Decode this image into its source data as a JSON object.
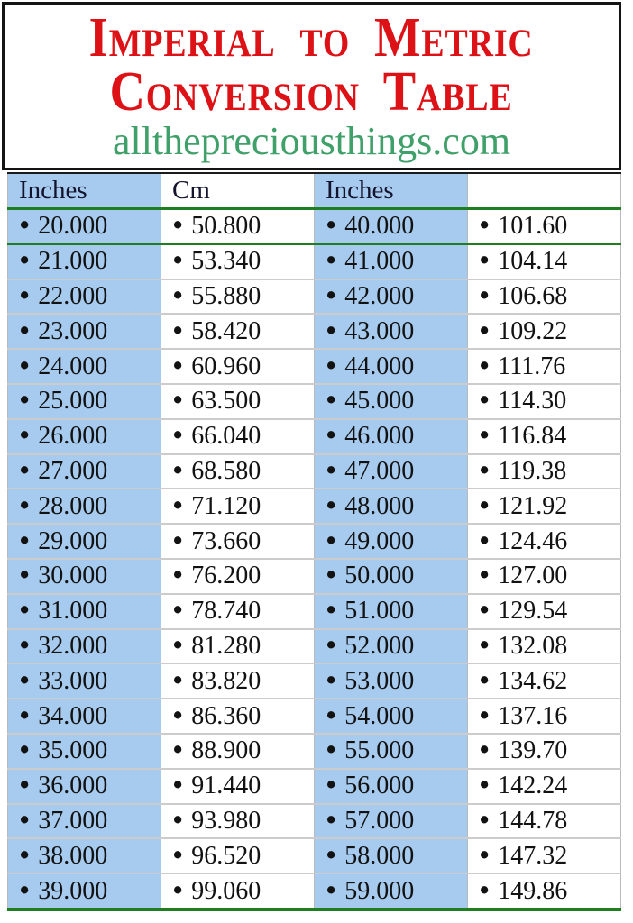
{
  "header_box": {
    "title_line1": "Imperial to Metric",
    "title_line2": "Conversion Table",
    "website": "allthepreciousthings.com"
  },
  "table": {
    "bullet": "•",
    "columns": [
      "Inches",
      "Cm",
      "Inches",
      ""
    ],
    "rows": [
      [
        "20.000",
        "50.800",
        "40.000",
        "101.60"
      ],
      [
        "21.000",
        "53.340",
        "41.000",
        "104.14"
      ],
      [
        "22.000",
        "55.880",
        "42.000",
        "106.68"
      ],
      [
        "23.000",
        "58.420",
        "43.000",
        "109.22"
      ],
      [
        "24.000",
        "60.960",
        "44.000",
        "111.76"
      ],
      [
        "25.000",
        "63.500",
        "45.000",
        "114.30"
      ],
      [
        "26.000",
        "66.040",
        "46.000",
        "116.84"
      ],
      [
        "27.000",
        "68.580",
        "47.000",
        "119.38"
      ],
      [
        "28.000",
        "71.120",
        "48.000",
        "121.92"
      ],
      [
        "29.000",
        "73.660",
        "49.000",
        "124.46"
      ],
      [
        "30.000",
        "76.200",
        "50.000",
        "127.00"
      ],
      [
        "31.000",
        "78.740",
        "51.000",
        "129.54"
      ],
      [
        "32.000",
        "81.280",
        "52.000",
        "132.08"
      ],
      [
        "33.000",
        "83.820",
        "53.000",
        "134.62"
      ],
      [
        "34.000",
        "86.360",
        "54.000",
        "137.16"
      ],
      [
        "35.000",
        "88.900",
        "55.000",
        "139.70"
      ],
      [
        "36.000",
        "91.440",
        "56.000",
        "142.24"
      ],
      [
        "37.000",
        "93.980",
        "57.000",
        "144.78"
      ],
      [
        "38.000",
        "96.520",
        "58.000",
        "147.32"
      ],
      [
        "39.000",
        "99.060",
        "59.000",
        "149.86"
      ]
    ]
  },
  "colors": {
    "title_red": "#dd1217",
    "url_green": "#3fa069",
    "cell_blue": "#a7cbee",
    "line_green": "#1f7e1f"
  }
}
